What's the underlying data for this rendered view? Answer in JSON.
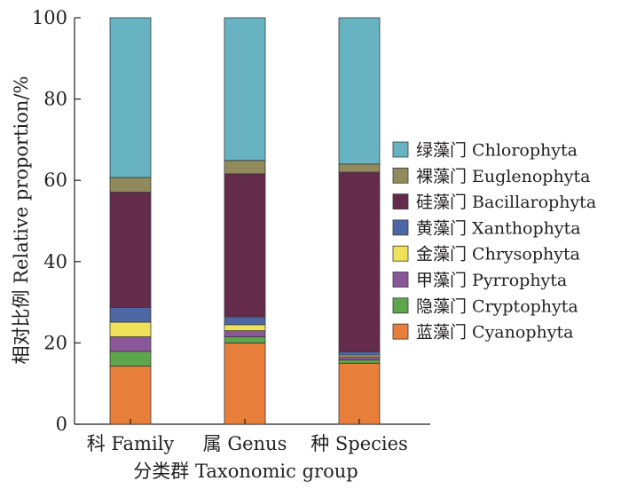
{
  "chart_data": {
    "type": "bar",
    "stacked": true,
    "title": "",
    "xlabel": "分类群 Taxonomic group",
    "ylabel": "相对比例 Relative proportion/%",
    "ylim": [
      0,
      100
    ],
    "yticks": [
      0,
      20,
      40,
      60,
      80,
      100
    ],
    "categories": [
      "科 Family",
      "属 Genus",
      "种 Species"
    ],
    "legend_position": "right",
    "series": [
      {
        "name": "蓝藻门 Cyanophyta",
        "color": "#e77e3a",
        "values": [
          14.3,
          20.0,
          15.0
        ]
      },
      {
        "name": "隐藻门 Cryptophyta",
        "color": "#5ea64b",
        "values": [
          3.6,
          1.5,
          0.8
        ]
      },
      {
        "name": "甲藻门 Pyrrophyta",
        "color": "#8a5898",
        "values": [
          3.6,
          1.5,
          0.8
        ]
      },
      {
        "name": "金藻门 Chrysophyta",
        "color": "#efe25a",
        "values": [
          3.6,
          1.5,
          0.4
        ]
      },
      {
        "name": "黄藻门 Xanthophyta",
        "color": "#4d67a4",
        "values": [
          3.6,
          1.9,
          0.8
        ]
      },
      {
        "name": "硅藻门 Bacillarophyta",
        "color": "#652b4a",
        "values": [
          28.4,
          35.2,
          44.2
        ]
      },
      {
        "name": "裸藻门 Euglenophyta",
        "color": "#918a5c",
        "values": [
          3.6,
          3.3,
          2.0
        ]
      },
      {
        "name": "绿藻门 Chlorophyta",
        "color": "#67b3c1",
        "values": [
          39.3,
          35.1,
          36.0
        ]
      }
    ]
  }
}
